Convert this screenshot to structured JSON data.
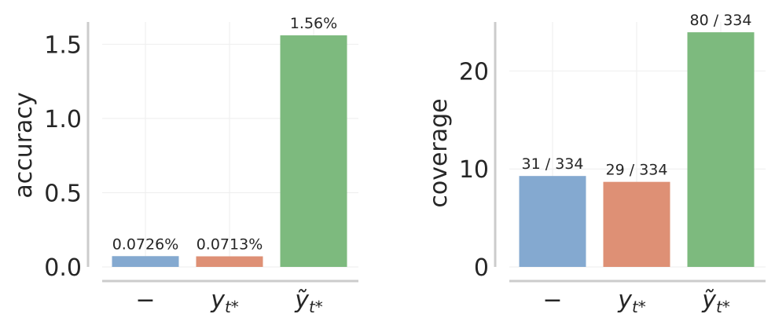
{
  "colors": {
    "bar_colors": [
      "#84a9d0",
      "#de9075",
      "#7dba7e"
    ],
    "axis_color": "#cccccc",
    "grid_color": "#eeeeee",
    "text_color": "#262626"
  },
  "chart_data": [
    {
      "type": "bar",
      "title": "",
      "xlabel": "",
      "ylabel": "accuracy",
      "ylim": [
        0,
        1.65
      ],
      "yticks": [
        "0.0",
        "0.5",
        "1.0",
        "1.5"
      ],
      "ytick_values": [
        0,
        0.5,
        1.0,
        1.5
      ],
      "categories": [
        {
          "base": "−",
          "sub": ""
        },
        {
          "base": "y",
          "sub": "t*"
        },
        {
          "base": "ỹ",
          "sub": "t*"
        }
      ],
      "values": [
        0.0726,
        0.0713,
        1.56
      ],
      "data_labels": [
        "0.0726%",
        "0.0713%",
        "1.56%"
      ],
      "grid": true
    },
    {
      "type": "bar",
      "title": "",
      "xlabel": "",
      "ylabel": "coverage",
      "ylim": [
        0,
        25
      ],
      "yticks": [
        "0",
        "10",
        "20"
      ],
      "ytick_values": [
        0,
        10,
        20
      ],
      "categories": [
        {
          "base": "−",
          "sub": ""
        },
        {
          "base": "y",
          "sub": "t*"
        },
        {
          "base": "ỹ",
          "sub": "t*"
        }
      ],
      "values": [
        9.28,
        8.68,
        23.95
      ],
      "data_labels": [
        "31 / 334",
        "29 / 334",
        "80 / 334"
      ],
      "grid": true
    }
  ]
}
